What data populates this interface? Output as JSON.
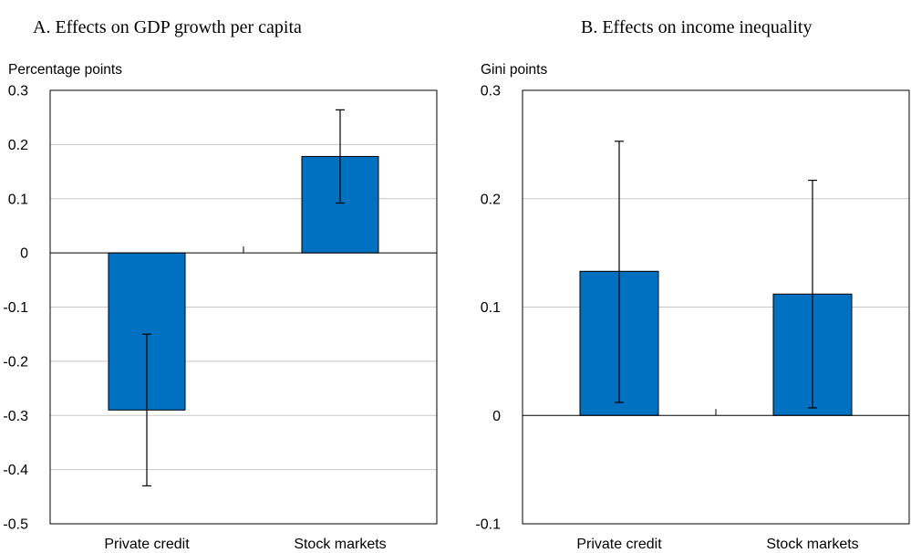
{
  "chart_data": [
    {
      "type": "bar",
      "title": "A. Effects on GDP growth per capita",
      "ylabel": "Percentage points",
      "categories": [
        "Private credit",
        "Stock markets"
      ],
      "values": [
        -0.29,
        0.178
      ],
      "error_low": [
        -0.43,
        0.092
      ],
      "error_high": [
        -0.15,
        0.264
      ],
      "ylim": [
        -0.5,
        0.3
      ],
      "yticks": [
        0.3,
        0.2,
        0.1,
        0,
        -0.1,
        -0.2,
        -0.3,
        -0.4,
        -0.5
      ],
      "ytick_labels": [
        "0.3",
        "0.2",
        "0.1",
        "0",
        "-0.1",
        "-0.2",
        "-0.3",
        "-0.4",
        "-0.5"
      ],
      "grid": true,
      "bar_color": "#0070c0"
    },
    {
      "type": "bar",
      "title": "B. Effects on income inequality",
      "ylabel": "Gini points",
      "categories": [
        "Private credit",
        "Stock markets"
      ],
      "values": [
        0.133,
        0.112
      ],
      "error_low": [
        0.012,
        0.007
      ],
      "error_high": [
        0.253,
        0.217
      ],
      "ylim": [
        -0.1,
        0.3
      ],
      "yticks": [
        0.3,
        0.2,
        0.1,
        0,
        -0.1
      ],
      "ytick_labels": [
        "0.3",
        "0.2",
        "0.1",
        "0",
        "-0.1"
      ],
      "grid": true,
      "bar_color": "#0070c0"
    }
  ]
}
